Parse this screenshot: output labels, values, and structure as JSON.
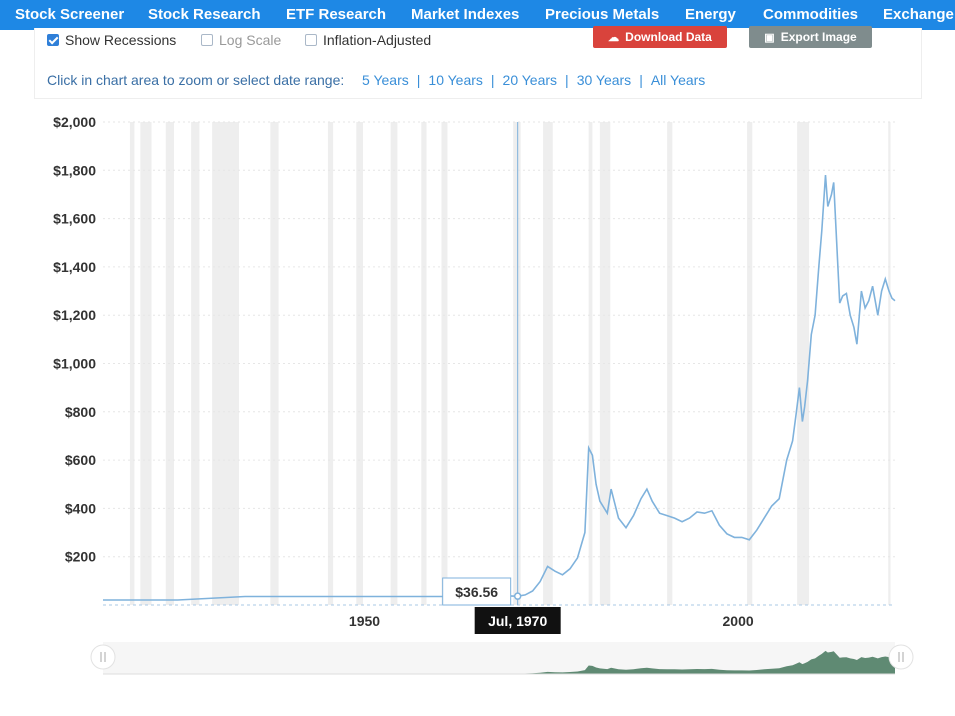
{
  "nav": {
    "items": [
      "Stock Screener",
      "Stock Research",
      "ETF Research",
      "Market Indexes",
      "Precious Metals",
      "Energy",
      "Commodities",
      "Exchange"
    ]
  },
  "controls": {
    "show_recessions": "Show Recessions",
    "show_recessions_checked": true,
    "log_scale": "Log Scale",
    "log_scale_checked": false,
    "inflation_adjusted": "Inflation-Adjusted",
    "inflation_adjusted_checked": false,
    "download_label": "Download Data",
    "export_label": "Export Image",
    "zoom_label": "Click in chart area to zoom or select date range:",
    "zoom_links": [
      "5 Years",
      "10 Years",
      "20 Years",
      "30 Years",
      "All Years"
    ]
  },
  "colors": {
    "nav": "#1e88e5",
    "line": "#7fb2dc",
    "recession": "#eeeeee",
    "download": "#d9433c",
    "export": "#7f8c8d",
    "navigator_fill": "#5f8a73"
  },
  "tooltip": {
    "value": "$36.56",
    "date": "Jul, 1970"
  },
  "chart_data": {
    "type": "line",
    "title": "",
    "xlabel": "",
    "ylabel": "",
    "xlim": [
      1915,
      2021
    ],
    "ylim": [
      0,
      2000
    ],
    "yticks": [
      "$200",
      "$400",
      "$600",
      "$800",
      "$1,000",
      "$1,200",
      "$1,400",
      "$1,600",
      "$1,800",
      "$2,000"
    ],
    "ytick_values": [
      200,
      400,
      600,
      800,
      1000,
      1200,
      1400,
      1600,
      1800,
      2000
    ],
    "xticks": [
      "1950",
      "2000"
    ],
    "xtick_values": [
      1950,
      2000
    ],
    "grid": true,
    "log_scale": false,
    "recessions": [
      [
        1918.6,
        1919.2
      ],
      [
        1920.0,
        1921.5
      ],
      [
        1923.4,
        1924.5
      ],
      [
        1926.8,
        1927.9
      ],
      [
        1929.6,
        1933.2
      ],
      [
        1937.4,
        1938.5
      ],
      [
        1945.1,
        1945.8
      ],
      [
        1948.9,
        1949.8
      ],
      [
        1953.5,
        1954.4
      ],
      [
        1957.6,
        1958.3
      ],
      [
        1960.3,
        1961.1
      ],
      [
        1969.9,
        1970.9
      ],
      [
        1973.9,
        1975.2
      ],
      [
        1980.0,
        1980.5
      ],
      [
        1981.5,
        1982.9
      ],
      [
        1990.5,
        1991.2
      ],
      [
        2001.2,
        2001.9
      ],
      [
        2007.9,
        2009.5
      ],
      [
        2020.1,
        2020.4
      ]
    ],
    "series": [
      {
        "x": [
          1915,
          1920,
          1925,
          1934,
          1940,
          1945,
          1950,
          1955,
          1960,
          1965,
          1968,
          1970.5,
          1971.5,
          1972.5,
          1973.5,
          1974.5,
          1975.5,
          1976.5,
          1977.5,
          1978.5,
          1979.5,
          1980.0,
          1980.5,
          1981.0,
          1981.5,
          1982.5,
          1983.0,
          1984.0,
          1985.0,
          1986.0,
          1987.0,
          1987.8,
          1988.5,
          1989.5,
          1990.5,
          1991.5,
          1992.5,
          1993.5,
          1994.5,
          1995.5,
          1996.5,
          1997.5,
          1998.5,
          1999.5,
          2000.5,
          2001.5,
          2002.5,
          2003.5,
          2004.5,
          2005.5,
          2006.5,
          2007.3,
          2007.8,
          2008.2,
          2008.6,
          2008.9,
          2009.3,
          2009.8,
          2010.3,
          2010.8,
          2011.2,
          2011.7,
          2012.0,
          2012.5,
          2012.8,
          2013.2,
          2013.6,
          2014.0,
          2014.5,
          2015.0,
          2015.5,
          2015.9,
          2016.5,
          2017.0,
          2017.5,
          2018.0,
          2018.7,
          2019.2,
          2019.7,
          2020.2,
          2020.6,
          2021.0
        ],
        "y": [
          20.7,
          20.7,
          20.7,
          35,
          35,
          35,
          35,
          35,
          35,
          35,
          39,
          36.56,
          42,
          58,
          97,
          160,
          140,
          125,
          150,
          195,
          300,
          650,
          620,
          500,
          430,
          380,
          480,
          360,
          320,
          370,
          440,
          480,
          430,
          380,
          370,
          360,
          345,
          360,
          385,
          380,
          390,
          330,
          295,
          280,
          280,
          270,
          310,
          360,
          410,
          440,
          600,
          680,
          800,
          900,
          760,
          820,
          930,
          1120,
          1200,
          1400,
          1550,
          1780,
          1650,
          1700,
          1750,
          1500,
          1250,
          1280,
          1290,
          1200,
          1150,
          1080,
          1300,
          1230,
          1260,
          1320,
          1200,
          1300,
          1350,
          1300,
          1270,
          1260
        ]
      }
    ]
  }
}
